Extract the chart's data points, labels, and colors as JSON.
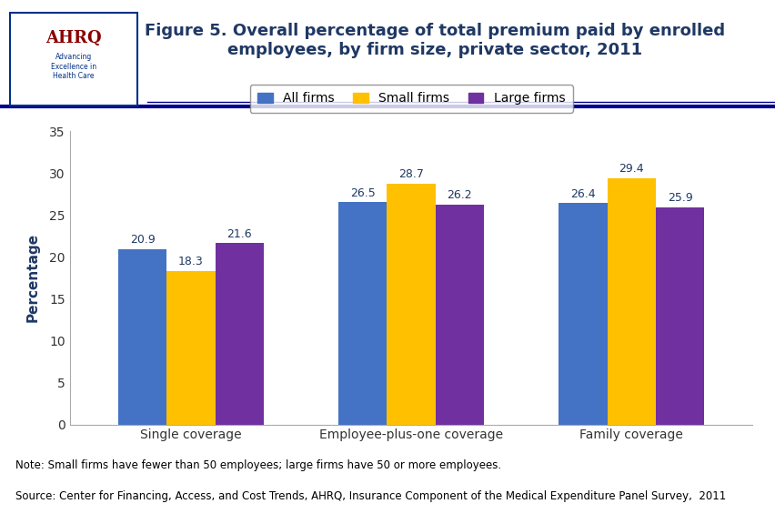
{
  "title": "Figure 5. Overall percentage of total premium paid by enrolled\nemployees, by firm size, private sector, 2011",
  "ylabel": "Percentage",
  "categories": [
    "Single coverage",
    "Employee-plus-one coverage",
    "Family coverage"
  ],
  "series": [
    {
      "label": "All firms",
      "color": "#4472C4",
      "values": [
        20.9,
        26.5,
        26.4
      ]
    },
    {
      "label": "Small firms",
      "color": "#FFC000",
      "values": [
        18.3,
        28.7,
        29.4
      ]
    },
    {
      "label": "Large firms",
      "color": "#7030A0",
      "values": [
        21.6,
        26.2,
        25.9
      ]
    }
  ],
  "ylim": [
    0,
    35
  ],
  "yticks": [
    0,
    5,
    10,
    15,
    20,
    25,
    30,
    35
  ],
  "note_line1": "Note: Small firms have fewer than 50 employees; large firms have 50 or more employees.",
  "note_line2": "Source: Center for Financing, Access, and Cost Trends, AHRQ, Insurance Component of the Medical Expenditure Panel Survey,  2011",
  "title_color": "#1F3864",
  "header_bg": "#FFFFFF",
  "top_border_color": "#00008B",
  "bar_border_color": "none",
  "background_color": "#FFFFFF",
  "legend_border_color": "#7F7F7F",
  "label_fontsize": 9,
  "title_fontsize": 13,
  "ylabel_color": "#1F3864",
  "note_fontsize": 8.5
}
